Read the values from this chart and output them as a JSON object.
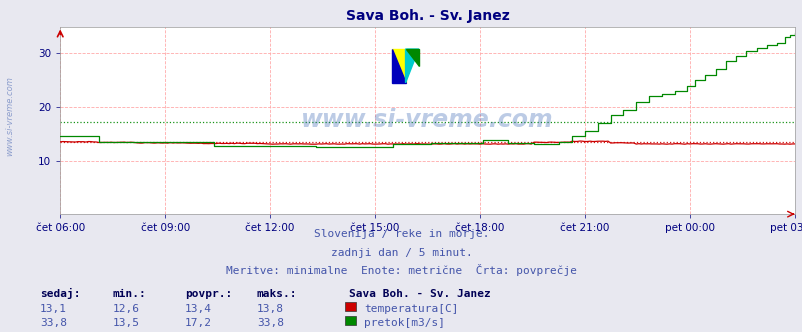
{
  "title": "Sava Boh. - Sv. Janez",
  "title_color": "#000080",
  "bg_color": "#e8e8f0",
  "plot_bg_color": "#ffffff",
  "xlabel_color": "#000080",
  "text_color": "#4455aa",
  "watermark": "www.si-vreme.com",
  "xlabels": [
    "čet 06:00",
    "čet 09:00",
    "čet 12:00",
    "čet 15:00",
    "čet 18:00",
    "čet 21:00",
    "pet 00:00",
    "pet 03:00"
  ],
  "ylim": [
    0,
    35
  ],
  "yticks": [
    10,
    20,
    30
  ],
  "n_points": 288,
  "temp_color": "#cc0000",
  "flow_color": "#008800",
  "avg_temp": 13.4,
  "avg_flow": 17.2,
  "temp_min": 12.6,
  "temp_max": 13.8,
  "flow_min": 13.5,
  "flow_max": 33.8,
  "temp_current": 13.1,
  "flow_current": 33.8,
  "subtitle1": "Slovenija / reke in morje.",
  "subtitle2": "zadnji dan / 5 minut.",
  "subtitle3": "Meritve: minimalne  Enote: metrične  Črta: povprečje",
  "legend_title": "Sava Boh. - Sv. Janez",
  "legend_items": [
    "temperatura[C]",
    "pretok[m3/s]"
  ],
  "legend_colors": [
    "#cc0000",
    "#008800"
  ],
  "table_headers": [
    "sedaj:",
    "min.:",
    "povpr.:",
    "maks.:"
  ],
  "table_row1": [
    "13,1",
    "12,6",
    "13,4",
    "13,8"
  ],
  "table_row2": [
    "33,8",
    "13,5",
    "17,2",
    "33,8"
  ],
  "sidebar_text": "www.si-vreme.com"
}
